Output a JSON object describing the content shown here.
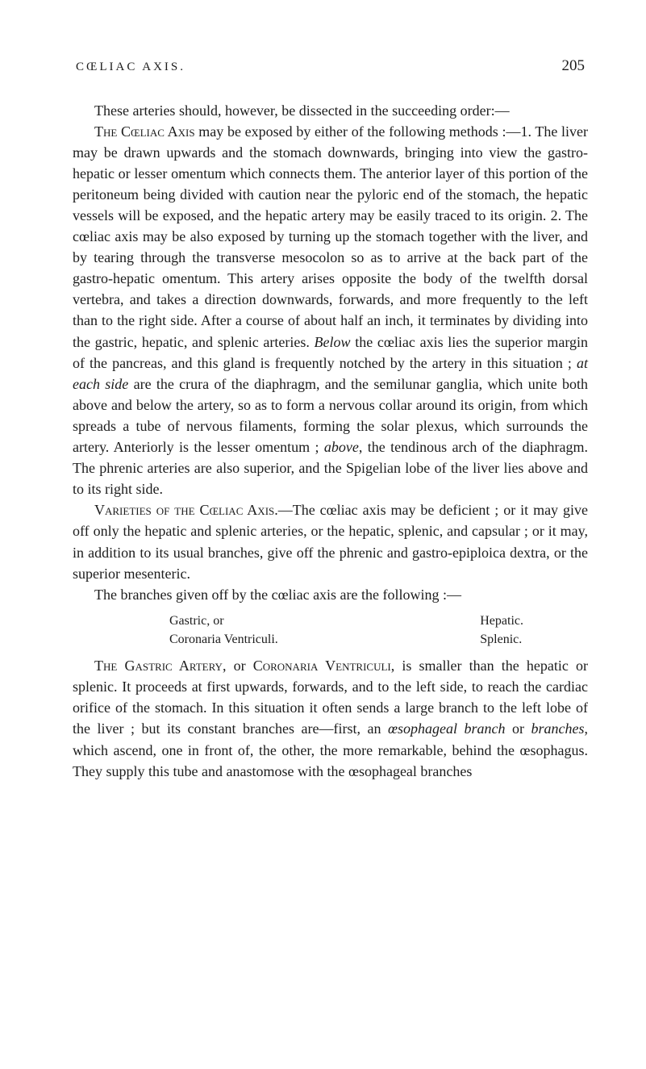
{
  "header": {
    "running_title": "CŒLIAC AXIS.",
    "page_number": "205"
  },
  "para1": {
    "lead": "These arteries should, however, be dissected in the succeeding order:—",
    "body": ""
  },
  "para2": {
    "heading": "The Cœliac Axis",
    "body_a": " may be exposed by either of the following methods :—1. The liver may be drawn upwards and the stomach downwards, bringing into view the gastro-hepatic or lesser omentum which connects them. The anterior layer of this portion of the peritoneum being divided with caution near the pyloric end of the stomach, the hepatic vessels will be exposed, and the hepatic artery may be easily traced to its origin. 2. The cœliac axis may be also exposed by turning up the stomach together with the liver, and by tearing through the transverse mesocolon so as to arrive at the back part of the gastro-hepatic omentum. This artery arises opposite the body of the twelfth dorsal vertebra, and takes a direction downwards, forwards, and more frequently to the left than to the right side. After a course of about half an inch, it terminates by dividing into the gastric, hepatic, and splenic arteries. ",
    "below_i": "Below",
    "body_b": " the cœliac axis lies the superior margin of the pancreas, and this gland is frequently notched by the artery in this situation ; ",
    "ateach_i": "at each side",
    "body_c": " are the crura of the diaphragm, and the semilunar ganglia, which unite both above and below the artery, so as to form a nervous collar around its origin, from which spreads a tube of nervous filaments, forming the solar plexus, which surrounds the artery. Anteriorly is the lesser omentum ; ",
    "above_i": "above",
    "body_d": ", the tendinous arch of the diaphragm. The phrenic arteries are also superior, and the Spigelian lobe of the liver lies above and to its right side."
  },
  "para3": {
    "heading": "Varieties of the Cœliac Axis.",
    "body": "—The cœliac axis may be deficient ; or it may give off only the hepatic and splenic arteries, or the hepatic, splenic, and capsular ; or it may, in addition to its usual branches, give off the phrenic and gastro-epiploica dextra, or the superior mesenteric."
  },
  "para4": {
    "body": "The branches given off by the cœliac axis are the following :—"
  },
  "branches": {
    "left_line1": "Gastric, or",
    "left_line2": "Coronaria Ventriculi.",
    "right_line1": "Hepatic.",
    "right_line2": "Splenic."
  },
  "para5": {
    "heading": "The Gastric Artery,",
    "sub": " or ",
    "heading2": "Coronaria Ventriculi,",
    "body_a": " is smaller than the hepatic or splenic. It proceeds at first upwards, forwards, and to the left side, to reach the cardiac orifice of the stomach. In this situation it often sends a large branch to the left lobe of the liver ; but its constant branches are—first, an ",
    "oesbranch_i": "œsophageal branch",
    "body_b": " or ",
    "branches_i": "branches",
    "body_c": ", which ascend, one in front of, the other, the more remarkable, behind the œsophagus. They supply this tube and anastomose with the œsophageal branches"
  }
}
